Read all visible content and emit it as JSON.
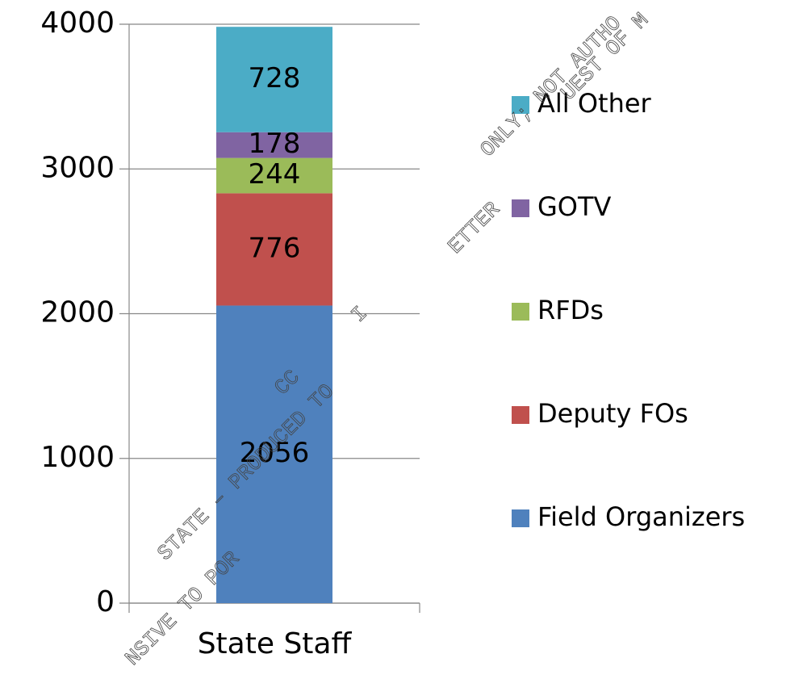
{
  "chart_data": {
    "type": "stacked_bar",
    "categories": [
      "State Staff"
    ],
    "series": [
      {
        "name": "Field Organizers",
        "color": "#4f81bd",
        "values": [
          2056
        ]
      },
      {
        "name": "Deputy FOs",
        "color": "#c0504d",
        "values": [
          776
        ]
      },
      {
        "name": "RFDs",
        "color": "#9bbb59",
        "values": [
          244
        ]
      },
      {
        "name": "GOTV",
        "color": "#8064a2",
        "values": [
          178
        ]
      },
      {
        "name": "All Other",
        "color": "#4bacc6",
        "values": [
          728
        ]
      }
    ],
    "ylim": [
      0,
      4000
    ],
    "yticks": [
      0,
      1000,
      2000,
      3000,
      4000
    ],
    "grid": true,
    "legend": "right",
    "watermark": [
      "STATE – PRODUCED TO",
      "I",
      "ONLY; NOT AUTHO",
      "NSIVE TO POR",
      "CC",
      "ETTER",
      "UEST OF M"
    ]
  }
}
